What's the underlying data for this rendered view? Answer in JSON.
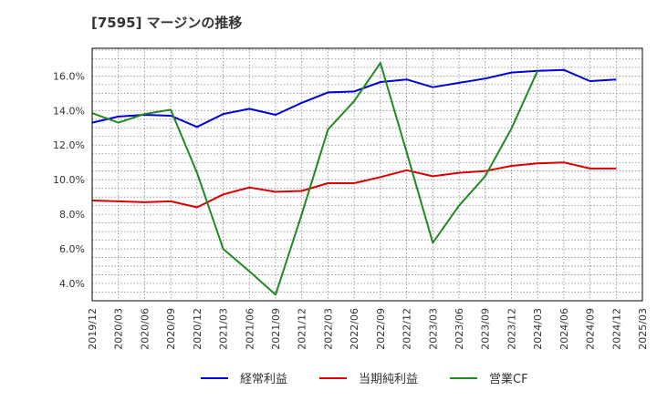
{
  "chart_data": {
    "type": "line",
    "title": "[7595]  マージンの推移",
    "xlabel": "",
    "ylabel": "",
    "categories": [
      "2019/12",
      "2020/03",
      "2020/06",
      "2020/09",
      "2020/12",
      "2021/03",
      "2021/06",
      "2021/09",
      "2021/12",
      "2022/03",
      "2022/06",
      "2022/09",
      "2022/12",
      "2023/03",
      "2023/06",
      "2023/09",
      "2023/12",
      "2024/03",
      "2024/06",
      "2024/09",
      "2024/12",
      "2025/03"
    ],
    "ylim": [
      3.0,
      17.6
    ],
    "yticks": [
      4.0,
      6.0,
      8.0,
      10.0,
      12.0,
      14.0,
      16.0
    ],
    "ytick_labels": [
      "4.0%",
      "6.0%",
      "8.0%",
      "10.0%",
      "12.0%",
      "14.0%",
      "16.0%"
    ],
    "grid": true,
    "legend_position": "bottom",
    "series": [
      {
        "name": "経常利益",
        "color": "#0000dd",
        "values": [
          13.3,
          13.65,
          13.75,
          13.7,
          13.05,
          13.8,
          14.1,
          13.75,
          14.45,
          15.05,
          15.1,
          15.65,
          15.8,
          15.35,
          15.6,
          15.85,
          16.2,
          16.3,
          16.35,
          15.7,
          15.8,
          null
        ]
      },
      {
        "name": "当期純利益",
        "color": "#dd0000",
        "values": [
          8.8,
          8.75,
          8.7,
          8.75,
          8.4,
          9.15,
          9.55,
          9.3,
          9.35,
          9.8,
          9.8,
          10.15,
          10.55,
          10.2,
          10.4,
          10.5,
          10.8,
          10.95,
          11.0,
          10.65,
          10.65,
          null
        ]
      },
      {
        "name": "営業CF",
        "color": "#228822",
        "values": [
          13.85,
          13.3,
          13.8,
          14.05,
          10.4,
          6.0,
          4.7,
          3.35,
          8.0,
          12.9,
          14.55,
          16.75,
          11.6,
          6.35,
          8.5,
          10.2,
          12.95,
          16.3,
          null,
          null,
          null,
          null
        ]
      }
    ]
  }
}
